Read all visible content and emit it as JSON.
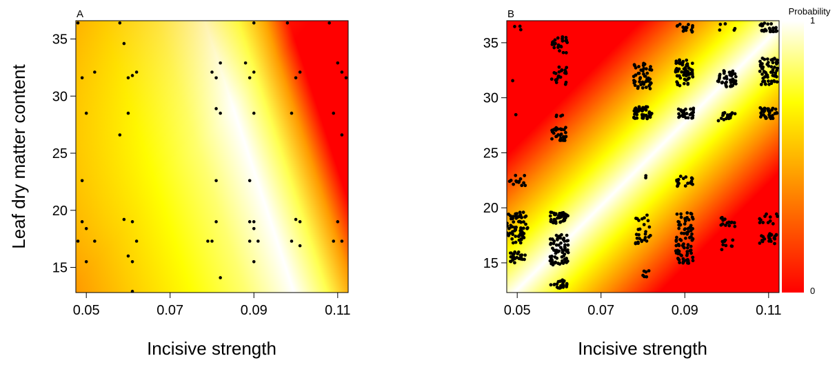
{
  "chart_data": [
    {
      "type": "scatter",
      "panel_label": "A",
      "xlabel": "Incisive strength",
      "ylabel": "Leaf dry matter content",
      "xlim": [
        0.0475,
        0.1125
      ],
      "ylim": [
        12.8,
        36.6
      ],
      "xticks": [
        0.05,
        0.07,
        0.09,
        0.11
      ],
      "xtick_labels": [
        "0.05",
        "0.07",
        "0.09",
        "0.11"
      ],
      "yticks": [
        15,
        20,
        25,
        30,
        35
      ],
      "ytick_labels": [
        "15",
        "20",
        "25",
        "30",
        "35"
      ],
      "grid": false,
      "points": [
        [
          0.048,
          36.4
        ],
        [
          0.049,
          31.6
        ],
        [
          0.052,
          32.1
        ],
        [
          0.05,
          28.5
        ],
        [
          0.049,
          22.6
        ],
        [
          0.049,
          19.0
        ],
        [
          0.05,
          18.4
        ],
        [
          0.048,
          17.3
        ],
        [
          0.052,
          17.3
        ],
        [
          0.05,
          15.5
        ],
        [
          0.058,
          36.4
        ],
        [
          0.059,
          34.6
        ],
        [
          0.06,
          31.6
        ],
        [
          0.061,
          31.8
        ],
        [
          0.062,
          32.1
        ],
        [
          0.06,
          28.5
        ],
        [
          0.058,
          26.6
        ],
        [
          0.059,
          19.2
        ],
        [
          0.061,
          19.0
        ],
        [
          0.062,
          17.3
        ],
        [
          0.06,
          16.0
        ],
        [
          0.061,
          15.5
        ],
        [
          0.061,
          12.9
        ],
        [
          0.08,
          32.1
        ],
        [
          0.081,
          31.6
        ],
        [
          0.082,
          32.9
        ],
        [
          0.081,
          28.9
        ],
        [
          0.082,
          28.5
        ],
        [
          0.081,
          22.6
        ],
        [
          0.081,
          19.0
        ],
        [
          0.079,
          17.3
        ],
        [
          0.08,
          17.3
        ],
        [
          0.082,
          14.1
        ],
        [
          0.09,
          36.4
        ],
        [
          0.088,
          32.9
        ],
        [
          0.089,
          31.6
        ],
        [
          0.09,
          32.1
        ],
        [
          0.09,
          28.5
        ],
        [
          0.089,
          22.6
        ],
        [
          0.089,
          19.0
        ],
        [
          0.09,
          18.4
        ],
        [
          0.09,
          19.0
        ],
        [
          0.089,
          17.3
        ],
        [
          0.091,
          17.3
        ],
        [
          0.09,
          15.5
        ],
        [
          0.098,
          36.4
        ],
        [
          0.101,
          32.1
        ],
        [
          0.1,
          31.6
        ],
        [
          0.099,
          28.5
        ],
        [
          0.1,
          19.2
        ],
        [
          0.101,
          19.0
        ],
        [
          0.099,
          17.3
        ],
        [
          0.101,
          16.9
        ],
        [
          0.108,
          36.4
        ],
        [
          0.11,
          32.9
        ],
        [
          0.111,
          32.1
        ],
        [
          0.112,
          31.6
        ],
        [
          0.109,
          28.5
        ],
        [
          0.111,
          26.6
        ],
        [
          0.11,
          19.0
        ],
        [
          0.109,
          17.3
        ],
        [
          0.111,
          17.3
        ]
      ]
    },
    {
      "type": "scatter",
      "panel_label": "B",
      "xlabel": "Incisive strength",
      "ylabel": "",
      "xlim": [
        0.0475,
        0.1125
      ],
      "ylim": [
        12.3,
        37.0
      ],
      "xticks": [
        0.05,
        0.07,
        0.09,
        0.11
      ],
      "xtick_labels": [
        "0.05",
        "0.07",
        "0.09",
        "0.11"
      ],
      "yticks": [
        15,
        20,
        25,
        30,
        35
      ],
      "ytick_labels": [
        "15",
        "20",
        "25",
        "30",
        "35"
      ],
      "grid": false,
      "clusters": [
        {
          "x": 0.05,
          "y": 18.2,
          "x_spread": 0.0025,
          "y_spread": 1.4,
          "n": 70
        },
        {
          "x": 0.05,
          "y": 15.5,
          "x_spread": 0.002,
          "y_spread": 0.5,
          "n": 25
        },
        {
          "x": 0.05,
          "y": 22.5,
          "x_spread": 0.002,
          "y_spread": 0.5,
          "n": 14
        },
        {
          "x": 0.049,
          "y": 31.6,
          "x_spread": 0.0005,
          "y_spread": 0.2,
          "n": 1
        },
        {
          "x": 0.05,
          "y": 28.3,
          "x_spread": 0.0005,
          "y_spread": 0.2,
          "n": 1
        },
        {
          "x": 0.05,
          "y": 36.2,
          "x_spread": 0.0015,
          "y_spread": 0.3,
          "n": 3
        },
        {
          "x": 0.06,
          "y": 19.1,
          "x_spread": 0.0022,
          "y_spread": 0.5,
          "n": 45
        },
        {
          "x": 0.06,
          "y": 16.2,
          "x_spread": 0.0022,
          "y_spread": 1.4,
          "n": 70
        },
        {
          "x": 0.06,
          "y": 13.1,
          "x_spread": 0.002,
          "y_spread": 0.4,
          "n": 20
        },
        {
          "x": 0.06,
          "y": 26.7,
          "x_spread": 0.002,
          "y_spread": 0.6,
          "n": 30
        },
        {
          "x": 0.06,
          "y": 28.5,
          "x_spread": 0.001,
          "y_spread": 0.3,
          "n": 4
        },
        {
          "x": 0.06,
          "y": 32.0,
          "x_spread": 0.0018,
          "y_spread": 0.8,
          "n": 20
        },
        {
          "x": 0.06,
          "y": 34.8,
          "x_spread": 0.002,
          "y_spread": 0.8,
          "n": 22
        },
        {
          "x": 0.08,
          "y": 32.0,
          "x_spread": 0.0022,
          "y_spread": 1.2,
          "n": 50
        },
        {
          "x": 0.08,
          "y": 28.7,
          "x_spread": 0.0022,
          "y_spread": 0.6,
          "n": 45
        },
        {
          "x": 0.08,
          "y": 22.8,
          "x_spread": 0.0008,
          "y_spread": 0.2,
          "n": 2
        },
        {
          "x": 0.08,
          "y": 18.6,
          "x_spread": 0.0018,
          "y_spread": 0.8,
          "n": 12
        },
        {
          "x": 0.08,
          "y": 17.2,
          "x_spread": 0.0018,
          "y_spread": 0.5,
          "n": 16
        },
        {
          "x": 0.08,
          "y": 14.0,
          "x_spread": 0.0015,
          "y_spread": 0.3,
          "n": 6
        },
        {
          "x": 0.09,
          "y": 36.3,
          "x_spread": 0.002,
          "y_spread": 0.4,
          "n": 15
        },
        {
          "x": 0.09,
          "y": 32.3,
          "x_spread": 0.0022,
          "y_spread": 1.2,
          "n": 60
        },
        {
          "x": 0.09,
          "y": 28.6,
          "x_spread": 0.0022,
          "y_spread": 0.5,
          "n": 30
        },
        {
          "x": 0.09,
          "y": 22.4,
          "x_spread": 0.002,
          "y_spread": 0.5,
          "n": 20
        },
        {
          "x": 0.09,
          "y": 18.6,
          "x_spread": 0.0022,
          "y_spread": 1.0,
          "n": 35
        },
        {
          "x": 0.09,
          "y": 16.6,
          "x_spread": 0.0022,
          "y_spread": 0.8,
          "n": 35
        },
        {
          "x": 0.09,
          "y": 15.3,
          "x_spread": 0.002,
          "y_spread": 0.4,
          "n": 20
        },
        {
          "x": 0.1,
          "y": 36.4,
          "x_spread": 0.002,
          "y_spread": 0.4,
          "n": 5
        },
        {
          "x": 0.1,
          "y": 31.8,
          "x_spread": 0.0022,
          "y_spread": 0.8,
          "n": 45
        },
        {
          "x": 0.1,
          "y": 28.3,
          "x_spread": 0.002,
          "y_spread": 0.4,
          "n": 22
        },
        {
          "x": 0.1,
          "y": 18.8,
          "x_spread": 0.002,
          "y_spread": 0.5,
          "n": 15
        },
        {
          "x": 0.1,
          "y": 16.7,
          "x_spread": 0.0015,
          "y_spread": 0.5,
          "n": 10
        },
        {
          "x": 0.11,
          "y": 36.4,
          "x_spread": 0.0022,
          "y_spread": 0.4,
          "n": 25
        },
        {
          "x": 0.11,
          "y": 32.4,
          "x_spread": 0.0022,
          "y_spread": 1.2,
          "n": 60
        },
        {
          "x": 0.11,
          "y": 28.6,
          "x_spread": 0.0022,
          "y_spread": 0.5,
          "n": 35
        },
        {
          "x": 0.11,
          "y": 18.9,
          "x_spread": 0.0022,
          "y_spread": 0.6,
          "n": 12
        },
        {
          "x": 0.11,
          "y": 17.2,
          "x_spread": 0.0022,
          "y_spread": 0.5,
          "n": 22
        }
      ]
    }
  ],
  "legend": {
    "title": "Probability",
    "max_label": "1",
    "min_label": "0",
    "placement": "right",
    "colors": [
      "#ff0000",
      "#ff8000",
      "#ffff00",
      "#ffffff"
    ]
  },
  "colors": {
    "point": "#000000",
    "low": "#ff0000",
    "high": "#ffffff"
  }
}
